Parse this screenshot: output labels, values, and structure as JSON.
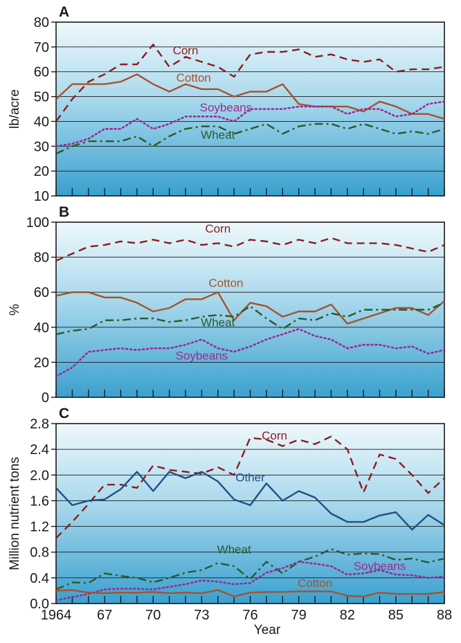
{
  "chart_data": [
    {
      "panel": "A",
      "type": "line",
      "ylabel": "lb/acre",
      "ylim": [
        10,
        80
      ],
      "yticks": [
        10,
        20,
        30,
        40,
        50,
        60,
        70,
        80
      ],
      "x": [
        1964,
        1965,
        1966,
        1967,
        1968,
        1969,
        1970,
        1971,
        1972,
        1973,
        1974,
        1975,
        1976,
        1977,
        1978,
        1979,
        1980,
        1981,
        1982,
        1983,
        1984,
        1985,
        1986,
        1987,
        1988
      ],
      "series": [
        {
          "name": "Corn",
          "color": "#8b1c1c",
          "style": "dashed",
          "values": [
            40,
            49,
            56,
            59,
            63,
            63,
            71,
            62,
            66,
            64,
            62,
            58,
            67,
            68,
            68,
            69,
            66,
            67,
            65,
            64,
            65,
            60,
            61,
            61,
            62
          ]
        },
        {
          "name": "Cotton",
          "color": "#a5532a",
          "style": "solid",
          "values": [
            49,
            55,
            55,
            55,
            56,
            59,
            55,
            52,
            55,
            53,
            53,
            50,
            52,
            52,
            55,
            47,
            46,
            46,
            46,
            44,
            48,
            46,
            43,
            43,
            41
          ]
        },
        {
          "name": "Soybeans",
          "color": "#9a2a8e",
          "style": "dotted",
          "values": [
            30,
            31,
            33,
            37,
            37,
            41,
            37,
            39,
            42,
            42,
            42,
            40,
            45,
            45,
            45,
            46,
            46,
            46,
            43,
            45,
            45,
            42,
            43,
            47,
            48
          ]
        },
        {
          "name": "Wheat",
          "color": "#2a5a2a",
          "style": "dashdot",
          "values": [
            27,
            30,
            32,
            32,
            32,
            34,
            30,
            34,
            37,
            38,
            38,
            35,
            37,
            39,
            35,
            38,
            39,
            39,
            37,
            39,
            37,
            35,
            36,
            35,
            37
          ]
        }
      ],
      "labels": [
        {
          "text": "Corn",
          "x": 1972,
          "y": 67
        },
        {
          "text": "Cotton",
          "x": 1972.5,
          "y": 56
        },
        {
          "text": "Soybeans",
          "x": 1974.5,
          "y": 44
        },
        {
          "text": "Wheat",
          "x": 1974,
          "y": 33
        }
      ]
    },
    {
      "panel": "B",
      "type": "line",
      "ylabel": "%",
      "ylim": [
        0,
        100
      ],
      "yticks": [
        0,
        20,
        40,
        60,
        80,
        100
      ],
      "x": [
        1964,
        1965,
        1966,
        1967,
        1968,
        1969,
        1970,
        1971,
        1972,
        1973,
        1974,
        1975,
        1976,
        1977,
        1978,
        1979,
        1980,
        1981,
        1982,
        1983,
        1984,
        1985,
        1986,
        1987,
        1988
      ],
      "series": [
        {
          "name": "Corn",
          "color": "#8b1c1c",
          "style": "dashed",
          "values": [
            78,
            82,
            86,
            87,
            89,
            88,
            90,
            88,
            90,
            87,
            88,
            86,
            90,
            89,
            87,
            90,
            88,
            91,
            88,
            88,
            88,
            87,
            85,
            83,
            87
          ]
        },
        {
          "name": "Cotton",
          "color": "#a5532a",
          "style": "solid",
          "values": [
            58,
            60,
            60,
            57,
            57,
            54,
            49,
            51,
            56,
            56,
            60,
            44,
            54,
            52,
            46,
            49,
            49,
            53,
            42,
            45,
            48,
            51,
            51,
            47,
            55
          ]
        },
        {
          "name": "Wheat",
          "color": "#2a5a2a",
          "style": "dashdot",
          "values": [
            36,
            38,
            39,
            44,
            44,
            45,
            45,
            43,
            44,
            46,
            47,
            46,
            52,
            45,
            39,
            45,
            44,
            48,
            46,
            50,
            50,
            50,
            50,
            50,
            54
          ]
        },
        {
          "name": "Soybeans",
          "color": "#9a2a8e",
          "style": "dotted",
          "values": [
            12,
            17,
            26,
            27,
            28,
            27,
            28,
            28,
            30,
            33,
            28,
            26,
            29,
            33,
            36,
            39,
            35,
            33,
            28,
            30,
            30,
            28,
            29,
            25,
            27
          ]
        }
      ],
      "labels": [
        {
          "text": "Corn",
          "x": 1974,
          "y": 94
        },
        {
          "text": "Cotton",
          "x": 1974.5,
          "y": 63
        },
        {
          "text": "Wheat",
          "x": 1974,
          "y": 40.5
        },
        {
          "text": "Soybeans",
          "x": 1973,
          "y": 21.5
        }
      ]
    },
    {
      "panel": "C",
      "type": "line",
      "xlabel": "Year",
      "ylabel": "Million nutrient tons",
      "ylim": [
        0,
        2.8
      ],
      "yticks": [
        0.0,
        0.4,
        0.8,
        1.2,
        1.6,
        2.0,
        2.4,
        2.8
      ],
      "xticks": [
        "1964",
        "67",
        "70",
        "73",
        "76",
        "79",
        "82",
        "85",
        "88"
      ],
      "x": [
        1964,
        1965,
        1966,
        1967,
        1968,
        1969,
        1970,
        1971,
        1972,
        1973,
        1974,
        1975,
        1976,
        1977,
        1978,
        1979,
        1980,
        1981,
        1982,
        1983,
        1984,
        1985,
        1986,
        1987,
        1988
      ],
      "series": [
        {
          "name": "Corn",
          "color": "#8b1c1c",
          "style": "dashed",
          "values": [
            1.02,
            1.27,
            1.55,
            1.85,
            1.85,
            1.8,
            2.15,
            2.08,
            2.05,
            2.02,
            2.12,
            2.0,
            2.58,
            2.55,
            2.45,
            2.55,
            2.48,
            2.6,
            2.4,
            1.73,
            2.32,
            2.25,
            2.0,
            1.72,
            1.95
          ]
        },
        {
          "name": "Other",
          "color": "#1f4f86",
          "style": "solid",
          "values": [
            1.8,
            1.53,
            1.6,
            1.62,
            1.78,
            2.05,
            1.75,
            2.05,
            1.95,
            2.05,
            1.9,
            1.62,
            1.53,
            1.87,
            1.6,
            1.75,
            1.65,
            1.4,
            1.27,
            1.27,
            1.37,
            1.42,
            1.15,
            1.38,
            1.22
          ]
        },
        {
          "name": "Wheat",
          "color": "#2a5a2a",
          "style": "dashdot",
          "values": [
            0.22,
            0.33,
            0.32,
            0.47,
            0.43,
            0.4,
            0.33,
            0.4,
            0.48,
            0.52,
            0.63,
            0.58,
            0.38,
            0.65,
            0.47,
            0.65,
            0.73,
            0.85,
            0.76,
            0.78,
            0.77,
            0.68,
            0.7,
            0.64,
            0.7
          ]
        },
        {
          "name": "Soybeans",
          "color": "#9a2a8e",
          "style": "dotted",
          "values": [
            0.05,
            0.1,
            0.15,
            0.22,
            0.23,
            0.23,
            0.22,
            0.26,
            0.3,
            0.36,
            0.34,
            0.3,
            0.32,
            0.48,
            0.55,
            0.65,
            0.62,
            0.58,
            0.45,
            0.47,
            0.52,
            0.45,
            0.44,
            0.4,
            0.42
          ]
        },
        {
          "name": "Cotton",
          "color": "#a5532a",
          "style": "solid",
          "values": [
            0.2,
            0.21,
            0.17,
            0.16,
            0.17,
            0.17,
            0.18,
            0.16,
            0.17,
            0.16,
            0.21,
            0.11,
            0.17,
            0.18,
            0.18,
            0.19,
            0.19,
            0.19,
            0.12,
            0.11,
            0.17,
            0.15,
            0.15,
            0.15,
            0.18
          ]
        }
      ],
      "labels": [
        {
          "text": "Corn",
          "x": 1977.5,
          "y": 2.55
        },
        {
          "text": "Other",
          "x": 1976,
          "y": 1.9
        },
        {
          "text": "Wheat",
          "x": 1975,
          "y": 0.78
        },
        {
          "text": "Soybeans",
          "x": 1984,
          "y": 0.52
        },
        {
          "text": "Cotton",
          "x": 1980,
          "y": 0.26
        }
      ]
    }
  ]
}
